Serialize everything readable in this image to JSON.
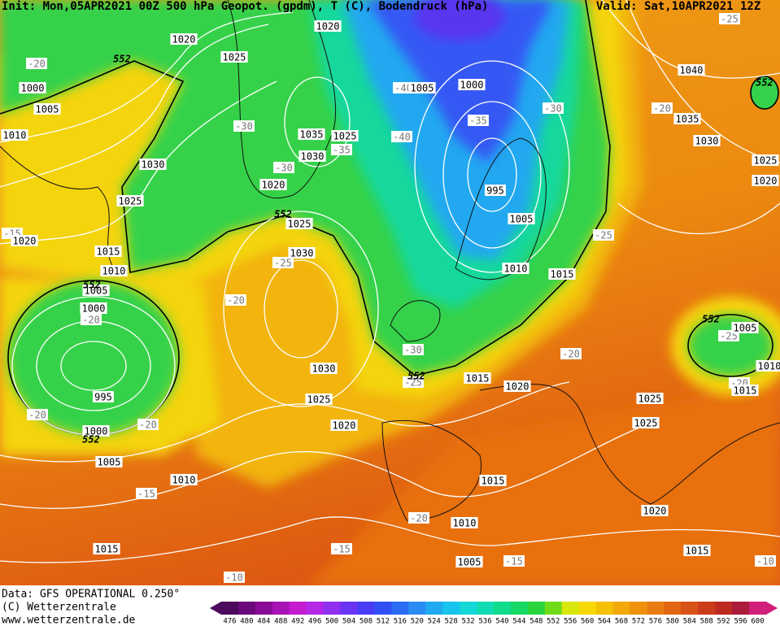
{
  "header": {
    "init": "Init: Mon,05APR2021 00Z 500 hPa Geopot. (gpdm), T (C), Bodendruck (hPa)",
    "valid": "Valid: Sat,10APR2021 12Z"
  },
  "footer": [
    "Data: GFS OPERATIONAL 0.250°",
    "(C) Wetterzentrale",
    "www.wetterzentrale.de"
  ],
  "colorbar": {
    "ticks": [
      476,
      480,
      484,
      488,
      492,
      496,
      500,
      504,
      508,
      512,
      516,
      520,
      524,
      528,
      532,
      536,
      540,
      544,
      548,
      552,
      556,
      560,
      564,
      568,
      572,
      576,
      580,
      584,
      588,
      592,
      596,
      600
    ],
    "colors": [
      "#4b0a5c",
      "#6a0a7a",
      "#8a0c96",
      "#a812b4",
      "#c41ccf",
      "#b428e6",
      "#9030f0",
      "#6a34f4",
      "#4a3cf6",
      "#3050f6",
      "#2a6cf4",
      "#2a8cf2",
      "#22aaf0",
      "#18c4ec",
      "#14d8d8",
      "#10dcb4",
      "#10dc8c",
      "#16d864",
      "#2ad43c",
      "#70dc18",
      "#d8e80c",
      "#f6d804",
      "#f4c004",
      "#f2a808",
      "#ee920c",
      "#e87c10",
      "#e26612",
      "#d85216",
      "#cc3c1a",
      "#bc2a20",
      "#ac1c3c",
      "#d0207a"
    ]
  },
  "pressure_labels": [
    1020,
    1020,
    1025,
    1000,
    1005,
    1010,
    1030,
    1025,
    1020,
    1015,
    1010,
    1005,
    1000,
    995,
    1000,
    1005,
    1010,
    1015,
    1035,
    1025,
    1030,
    1020,
    1025,
    1030,
    1030,
    1025,
    1020,
    1005,
    1000,
    995,
    1005,
    1010,
    1015,
    1015,
    1020,
    1040,
    1035,
    1030,
    1025,
    1020,
    1005,
    1010,
    1015,
    1025,
    1025,
    1015,
    1010,
    1005,
    1020,
    1015
  ],
  "temperature_labels": [
    -20,
    -30,
    -35,
    -30,
    -40,
    -40,
    -35,
    -30,
    -25,
    -20,
    -25,
    -25,
    -20,
    -20,
    -15,
    -20,
    -20,
    -15,
    -30,
    -25,
    -20,
    -25,
    -20,
    -20,
    -15,
    -15,
    -10,
    -10
  ],
  "height_labels": [
    552,
    552,
    552,
    552,
    552,
    552,
    552
  ]
}
